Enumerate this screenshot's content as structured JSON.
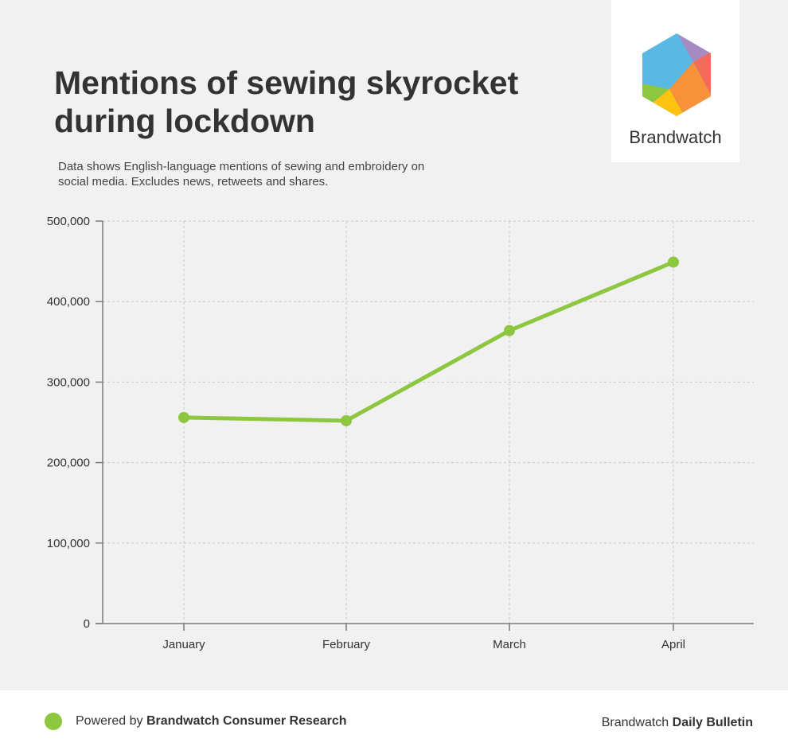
{
  "header": {
    "title": "Mentions of sewing skyrocket during lockdown",
    "subtitle": "Data shows English-language mentions of sewing and embroidery on social media. Excludes news, retweets and shares."
  },
  "logo": {
    "name": "Brandwatch",
    "icon": "hexagon-logo-icon",
    "colors": [
      "#5bb7e3",
      "#a68ac2",
      "#f26c5b",
      "#f7923a",
      "#ffc20e",
      "#8dc63f"
    ]
  },
  "chart_data": {
    "type": "line",
    "categories": [
      "January",
      "February",
      "March",
      "April"
    ],
    "series": [
      {
        "values": [
          256000,
          252000,
          364000,
          449000
        ],
        "color": "#8dc63f"
      }
    ],
    "yticks": [
      0,
      100000,
      200000,
      300000,
      400000,
      500000
    ],
    "ytick_labels": [
      "0",
      "100,000",
      "200,000",
      "300,000",
      "400,000",
      "500,000"
    ],
    "ylim": [
      0,
      500000
    ],
    "grid": true,
    "xlabel": "",
    "ylabel": ""
  },
  "footer": {
    "left_prefix": "Powered by ",
    "left_strong": "Brandwatch Consumer Research",
    "right_prefix": "Brandwatch ",
    "right_strong": "Daily Bulletin",
    "dot_color": "#8dc63f"
  }
}
